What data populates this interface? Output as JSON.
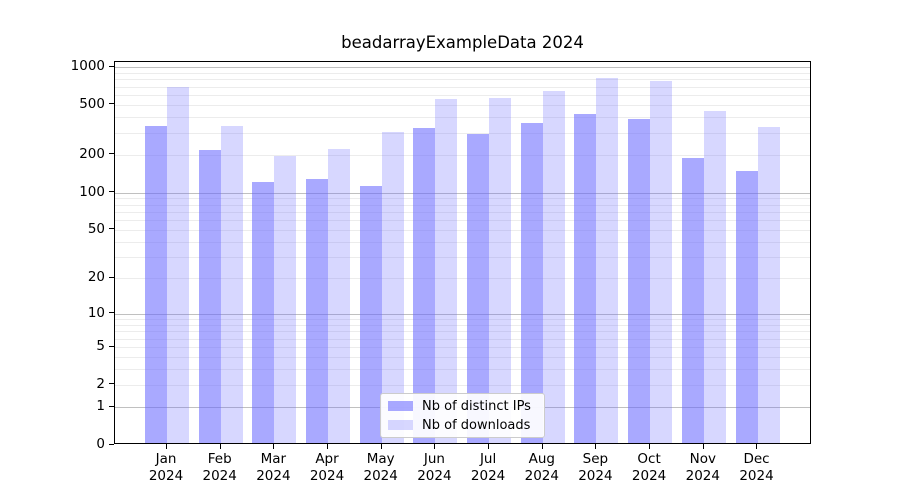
{
  "figure": {
    "title": "beadarrayExampleData 2024"
  },
  "legend": {
    "items": [
      {
        "label": "Nb of distinct IPs",
        "color": "rgba(102,102,255,0.56)"
      },
      {
        "label": "Nb of downloads",
        "color": "rgba(102,102,255,0.26)"
      }
    ]
  },
  "chart_data": {
    "type": "bar",
    "title": "beadarrayExampleData 2024",
    "categories": [
      "Jan 2024",
      "Feb 2024",
      "Mar 2024",
      "Apr 2024",
      "May 2024",
      "Jun 2024",
      "Jul 2024",
      "Aug 2024",
      "Sep 2024",
      "Oct 2024",
      "Nov 2024",
      "Dec 2024"
    ],
    "series": [
      {
        "name": "Nb of distinct IPs",
        "color": "rgba(102,102,255,0.56)",
        "values": [
          336,
          215,
          120,
          126,
          111,
          319,
          288,
          351,
          416,
          380,
          187,
          146
        ]
      },
      {
        "name": "Nb of downloads",
        "color": "rgba(102,102,255,0.26)",
        "values": [
          685,
          336,
          192,
          219,
          300,
          548,
          557,
          634,
          799,
          757,
          440,
          327
        ]
      }
    ],
    "yscale": "log1p",
    "ylim": [
      0,
      1000
    ],
    "yticks": [
      0,
      1,
      2,
      5,
      10,
      20,
      50,
      100,
      200,
      500,
      1000
    ],
    "gridlines": {
      "major": [
        1,
        10,
        100,
        1000
      ],
      "minor": [
        2,
        3,
        4,
        5,
        6,
        7,
        8,
        9,
        20,
        30,
        40,
        50,
        60,
        70,
        80,
        90,
        200,
        300,
        400,
        500,
        600,
        700,
        800,
        900
      ]
    },
    "grid": "horizontal",
    "legend_position": "inside-bottom-center",
    "xlabel": "",
    "ylabel": ""
  }
}
